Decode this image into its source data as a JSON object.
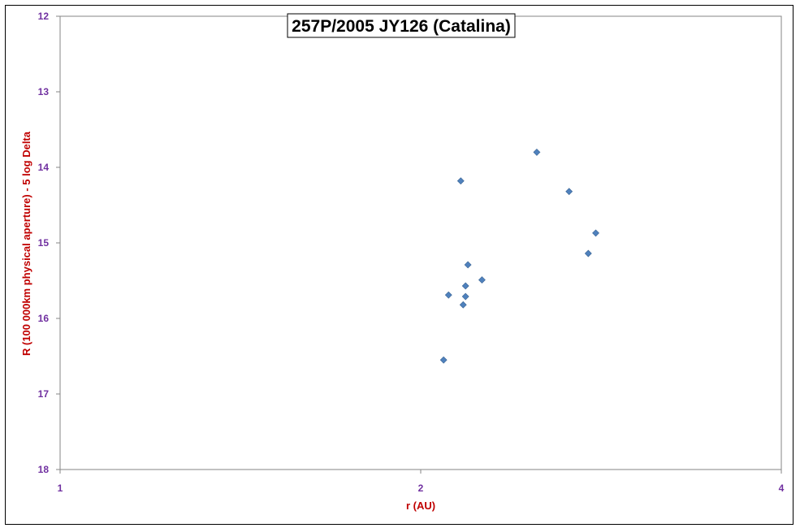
{
  "chart_data": {
    "type": "scatter",
    "title": "257P/2005 JY126 (Catalina)",
    "xlabel": "r (AU)",
    "ylabel": "R (100 000km physical aperture) - 5 log Delta",
    "x_scale": "log2",
    "xlim": [
      1,
      4
    ],
    "ylim": [
      12,
      18
    ],
    "y_inverted": true,
    "x_ticks": [
      1,
      2,
      4
    ],
    "y_ticks": [
      12,
      13,
      14,
      15,
      16,
      17,
      18
    ],
    "grid": false,
    "legend": "none",
    "series": [
      {
        "marker": "diamond",
        "color": "#4f81bd",
        "points": [
          {
            "x": 2.5,
            "y": 13.8
          },
          {
            "x": 2.16,
            "y": 14.18
          },
          {
            "x": 2.66,
            "y": 14.32
          },
          {
            "x": 2.8,
            "y": 14.87
          },
          {
            "x": 2.76,
            "y": 15.14
          },
          {
            "x": 2.19,
            "y": 15.29
          },
          {
            "x": 2.25,
            "y": 15.49
          },
          {
            "x": 2.18,
            "y": 15.57
          },
          {
            "x": 2.18,
            "y": 15.71
          },
          {
            "x": 2.11,
            "y": 15.69
          },
          {
            "x": 2.17,
            "y": 15.82
          },
          {
            "x": 2.09,
            "y": 16.55
          }
        ]
      }
    ]
  },
  "colors": {
    "tick_label": "#7030a0",
    "axis_title": "#c00000",
    "axis_line": "#868686",
    "marker": "#4f81bd"
  }
}
